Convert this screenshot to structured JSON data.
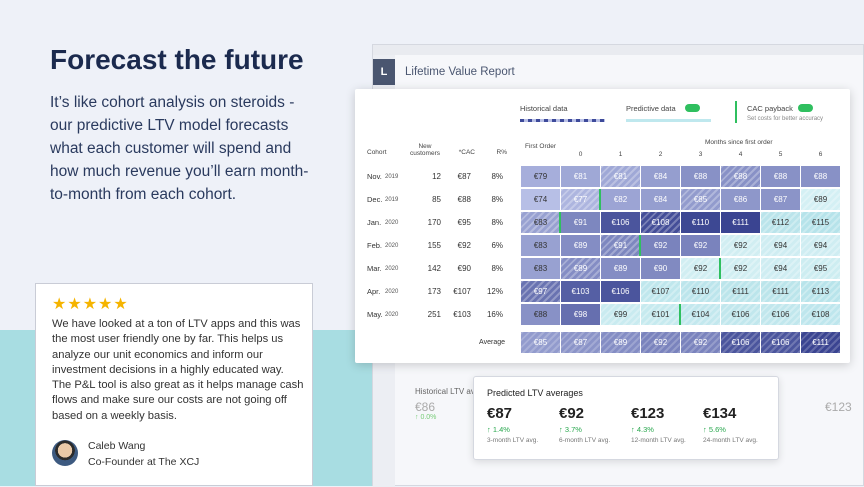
{
  "hero": {
    "title": "Forecast the future",
    "body": "It’s like cohort analysis on steroids - our predictive LTV model forecasts what each customer will spend and how much revenue you’ll earn month-to-month from each cohort."
  },
  "testimonial": {
    "stars": "★★★★★",
    "quote": "We have looked at a ton of LTV apps and this was the most user friendly one by far. This helps us analyze our unit economics and inform our investment decisions in a highly educated way. The P&L tool is also great as it helps manage cash flows and make sure our costs are not going off based on a weekly basis.",
    "author": "Caleb Wang",
    "role": "Co-Founder at The XCJ"
  },
  "app": {
    "logo": "L",
    "title": "Lifetime Value Report",
    "legend": {
      "historical": "Historical data",
      "predictive": "Predictive data",
      "cac": "CAC payback",
      "cac_note": "Set costs for better accuracy"
    },
    "table": {
      "months_label": "Months since first order",
      "headers": [
        "Cohort",
        "New customers",
        "*CAC",
        "R%",
        "First Order",
        "0",
        "1",
        "2",
        "3",
        "4",
        "5",
        "6"
      ],
      "rows": [
        {
          "cohort": "Nov.",
          "year": "2019",
          "cells": [
            "12",
            "€87",
            "8%",
            "€79",
            "€81",
            "€81",
            "€84",
            "€88",
            "€88",
            "€88",
            "€88"
          ]
        },
        {
          "cohort": "Dec.",
          "year": "2019",
          "cells": [
            "85",
            "€88",
            "8%",
            "€74",
            "€77",
            "€82",
            "€84",
            "€85",
            "€86",
            "€87",
            "€89"
          ]
        },
        {
          "cohort": "Jan.",
          "year": "2020",
          "cells": [
            "170",
            "€95",
            "8%",
            "€83",
            "€91",
            "€106",
            "€108",
            "€110",
            "€111",
            "€112",
            "€115"
          ]
        },
        {
          "cohort": "Feb.",
          "year": "2020",
          "cells": [
            "155",
            "€92",
            "6%",
            "€83",
            "€89",
            "€91",
            "€92",
            "€92",
            "€92",
            "€94",
            "€94"
          ]
        },
        {
          "cohort": "Mar.",
          "year": "2020",
          "cells": [
            "142",
            "€90",
            "8%",
            "€83",
            "€89",
            "€89",
            "€90",
            "€92",
            "€92",
            "€94",
            "€95"
          ]
        },
        {
          "cohort": "Apr.",
          "year": "2020",
          "cells": [
            "173",
            "€107",
            "12%",
            "€97",
            "€103",
            "€106",
            "€107",
            "€110",
            "€111",
            "€111",
            "€113"
          ]
        },
        {
          "cohort": "May.",
          "year": "2020",
          "cells": [
            "251",
            "€103",
            "16%",
            "€88",
            "€98",
            "€99",
            "€101",
            "€104",
            "€106",
            "€106",
            "€108"
          ]
        }
      ],
      "average": {
        "label": "Average",
        "cells": [
          "€85",
          "€87",
          "€89",
          "€92",
          "€92",
          "€106",
          "€106",
          "€111"
        ]
      }
    },
    "historical_card": {
      "title": "Historical LTV averages",
      "value": "€86",
      "change": "↑ 0.0%",
      "right_value": "€123"
    },
    "predicted_card": {
      "title": "Predicted LTV averages",
      "items": [
        {
          "value": "€87",
          "change": "↑ 1.4%",
          "label": "3-month LTV avg."
        },
        {
          "value": "€92",
          "change": "↑ 3.7%",
          "label": "6-month LTV avg."
        },
        {
          "value": "€123",
          "change": "↑ 4.3%",
          "label": "12-month LTV avg."
        },
        {
          "value": "€134",
          "change": "↑ 5.6%",
          "label": "24-month LTV avg."
        }
      ]
    }
  }
}
